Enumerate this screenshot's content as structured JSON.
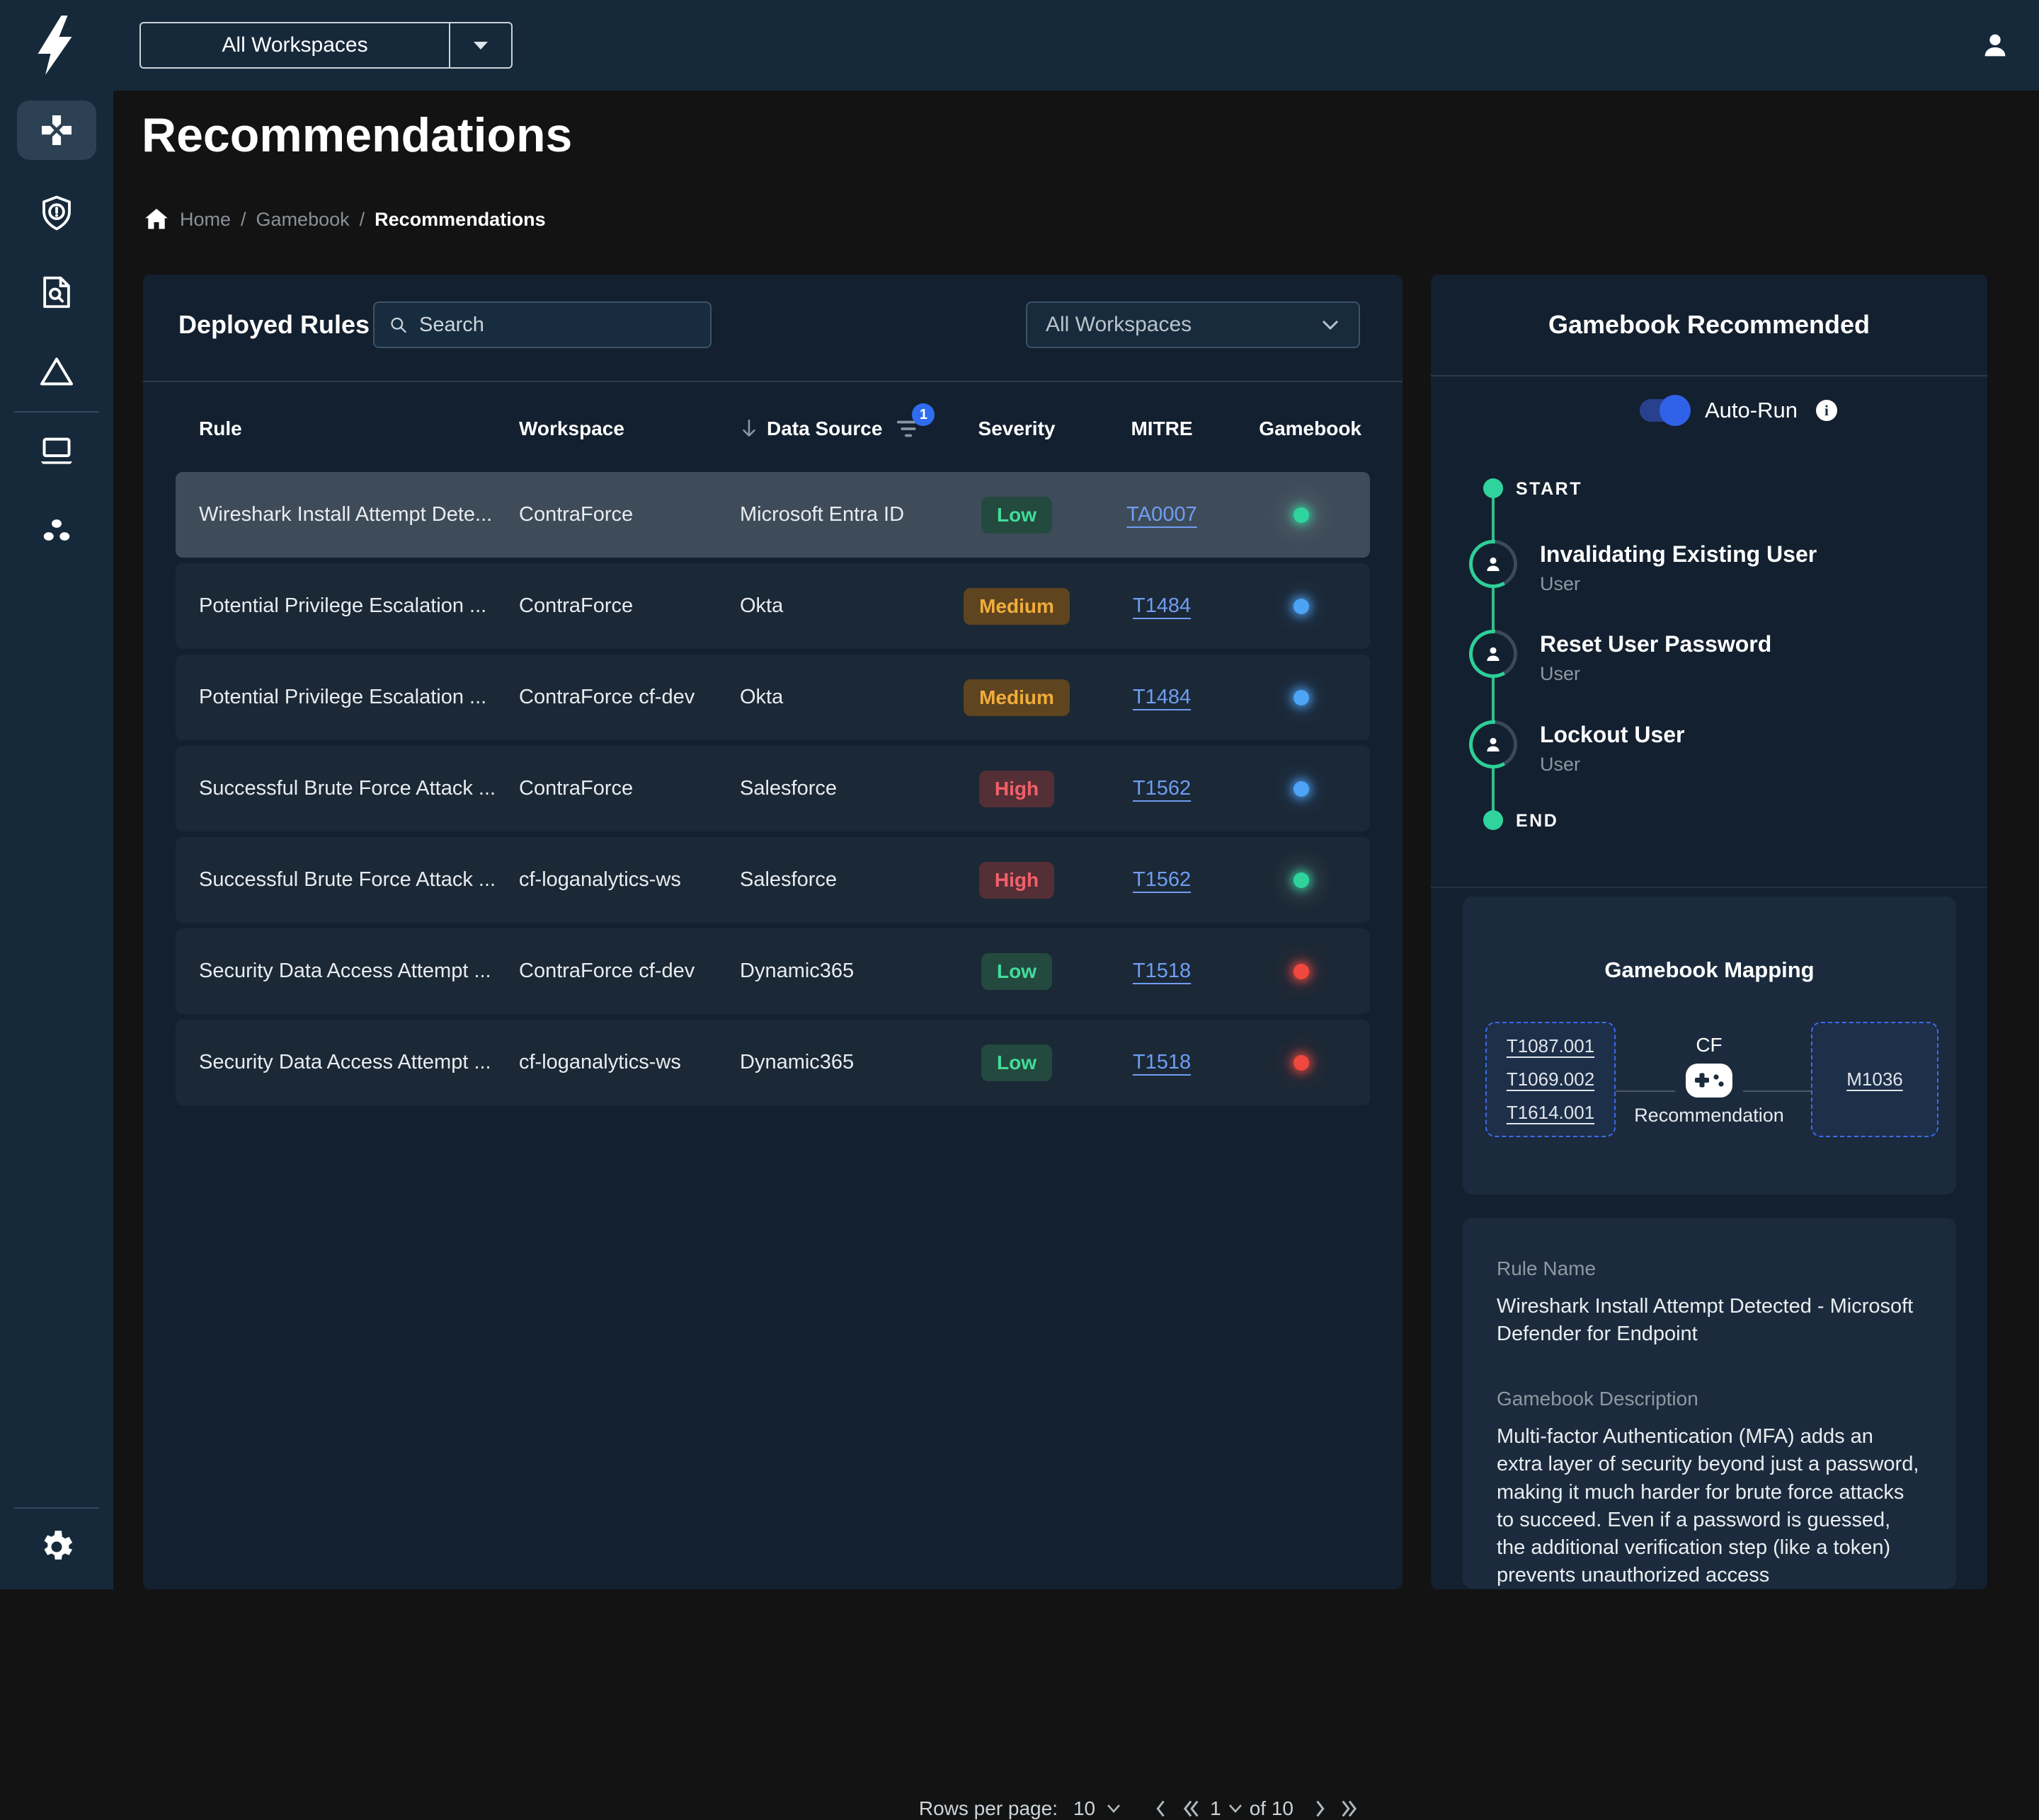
{
  "topbar": {
    "workspace_selector": "All Workspaces"
  },
  "page": {
    "title": "Recommendations",
    "breadcrumb": [
      "Home",
      "Gamebook",
      "Recommendations"
    ],
    "breadcrumb_separator": "/"
  },
  "icons": {
    "sidebar": [
      "gamepad",
      "shield-alert",
      "document-search",
      "triangle",
      "laptop",
      "cluster",
      "settings"
    ],
    "topbar": [
      "contraforce-logo",
      "dropdown-arrow",
      "user"
    ],
    "misc": [
      "home",
      "search",
      "sort-down-arrow",
      "filter",
      "chevron-down",
      "info",
      "person",
      "gamepad-recommendation"
    ]
  },
  "table": {
    "title": "Deployed Rules",
    "search_placeholder": "Search",
    "workspace_filter": "All Workspaces",
    "filter_badge": "1",
    "columns": [
      "Rule",
      "Workspace",
      "Data Source",
      "Severity",
      "MITRE",
      "Gamebook"
    ],
    "rows": [
      {
        "rule": "Wireshark Install Attempt Dete...",
        "workspace": "ContraForce",
        "data_source": "Microsoft Entra ID",
        "severity": "Low",
        "mitre": "TA0007",
        "gamebook": "green",
        "selected": true
      },
      {
        "rule": "Potential Privilege Escalation ...",
        "workspace": "ContraForce",
        "data_source": "Okta",
        "severity": "Medium",
        "mitre": "T1484",
        "gamebook": "blue",
        "selected": false
      },
      {
        "rule": "Potential Privilege Escalation ...",
        "workspace": "ContraForce cf-dev",
        "data_source": "Okta",
        "severity": "Medium",
        "mitre": "T1484",
        "gamebook": "blue",
        "selected": false
      },
      {
        "rule": "Successful Brute Force Attack ...",
        "workspace": "ContraForce",
        "data_source": "Salesforce",
        "severity": "High",
        "mitre": "T1562",
        "gamebook": "blue",
        "selected": false
      },
      {
        "rule": "Successful Brute Force Attack ...",
        "workspace": "cf-loganalytics-ws",
        "data_source": "Salesforce",
        "severity": "High",
        "mitre": "T1562",
        "gamebook": "green",
        "selected": false
      },
      {
        "rule": "Security Data Access Attempt ...",
        "workspace": "ContraForce cf-dev",
        "data_source": "Dynamic365",
        "severity": "Low",
        "mitre": "T1518",
        "gamebook": "red",
        "selected": false
      },
      {
        "rule": "Security Data Access Attempt ...",
        "workspace": "cf-loganalytics-ws",
        "data_source": "Dynamic365",
        "severity": "Low",
        "mitre": "T1518",
        "gamebook": "red",
        "selected": false
      }
    ],
    "pagination": {
      "label": "Rows per page:",
      "rows_per_page": "10",
      "current_page": "1",
      "total_label": "of 10"
    }
  },
  "gamebook": {
    "title": "Gamebook Recommended",
    "auto_run_label": "Auto-Run",
    "auto_run_on": true,
    "timeline": {
      "start_label": "START",
      "end_label": "END",
      "steps": [
        {
          "title": "Invalidating Existing User",
          "subtitle": "User"
        },
        {
          "title": "Reset User Password",
          "subtitle": "User"
        },
        {
          "title": "Lockout User",
          "subtitle": "User"
        }
      ]
    },
    "mapping": {
      "title": "Gamebook Mapping",
      "techniques": [
        "T1087.001",
        "T1069.002",
        "T1614.001"
      ],
      "center_top": "CF",
      "center_bottom": "Recommendation",
      "mitigation": "M1036"
    },
    "rule_info": {
      "rule_name_label": "Rule Name",
      "rule_name": "Wireshark Install Attempt Detected - Microsoft Defender for Endpoint",
      "description_label": "Gamebook Description",
      "description": "Multi-factor Authentication (MFA) adds an extra layer of security beyond just a password, making it much harder for brute force attacks to succeed. Even if a password is guessed, the additional verification step (like a token) prevents unauthorized access"
    }
  },
  "colors": {
    "topbar_bg": "#16293a",
    "page_bg": "#131313",
    "panel_bg": "#13202f",
    "card_bg": "#1b2b3d",
    "row_bg": "#1b2836",
    "row_selected_bg": "#3e4b59",
    "accent_blue": "#2f62e8",
    "link_blue": "#6f9ef2",
    "severity_low": "#41dd9b",
    "severity_medium": "#f0ad3a",
    "severity_high": "#f2606a",
    "dot_green": "#2fd49c",
    "dot_blue": "#4da3f5",
    "dot_red": "#f0483e",
    "timeline_green": "#2fbf8f"
  }
}
